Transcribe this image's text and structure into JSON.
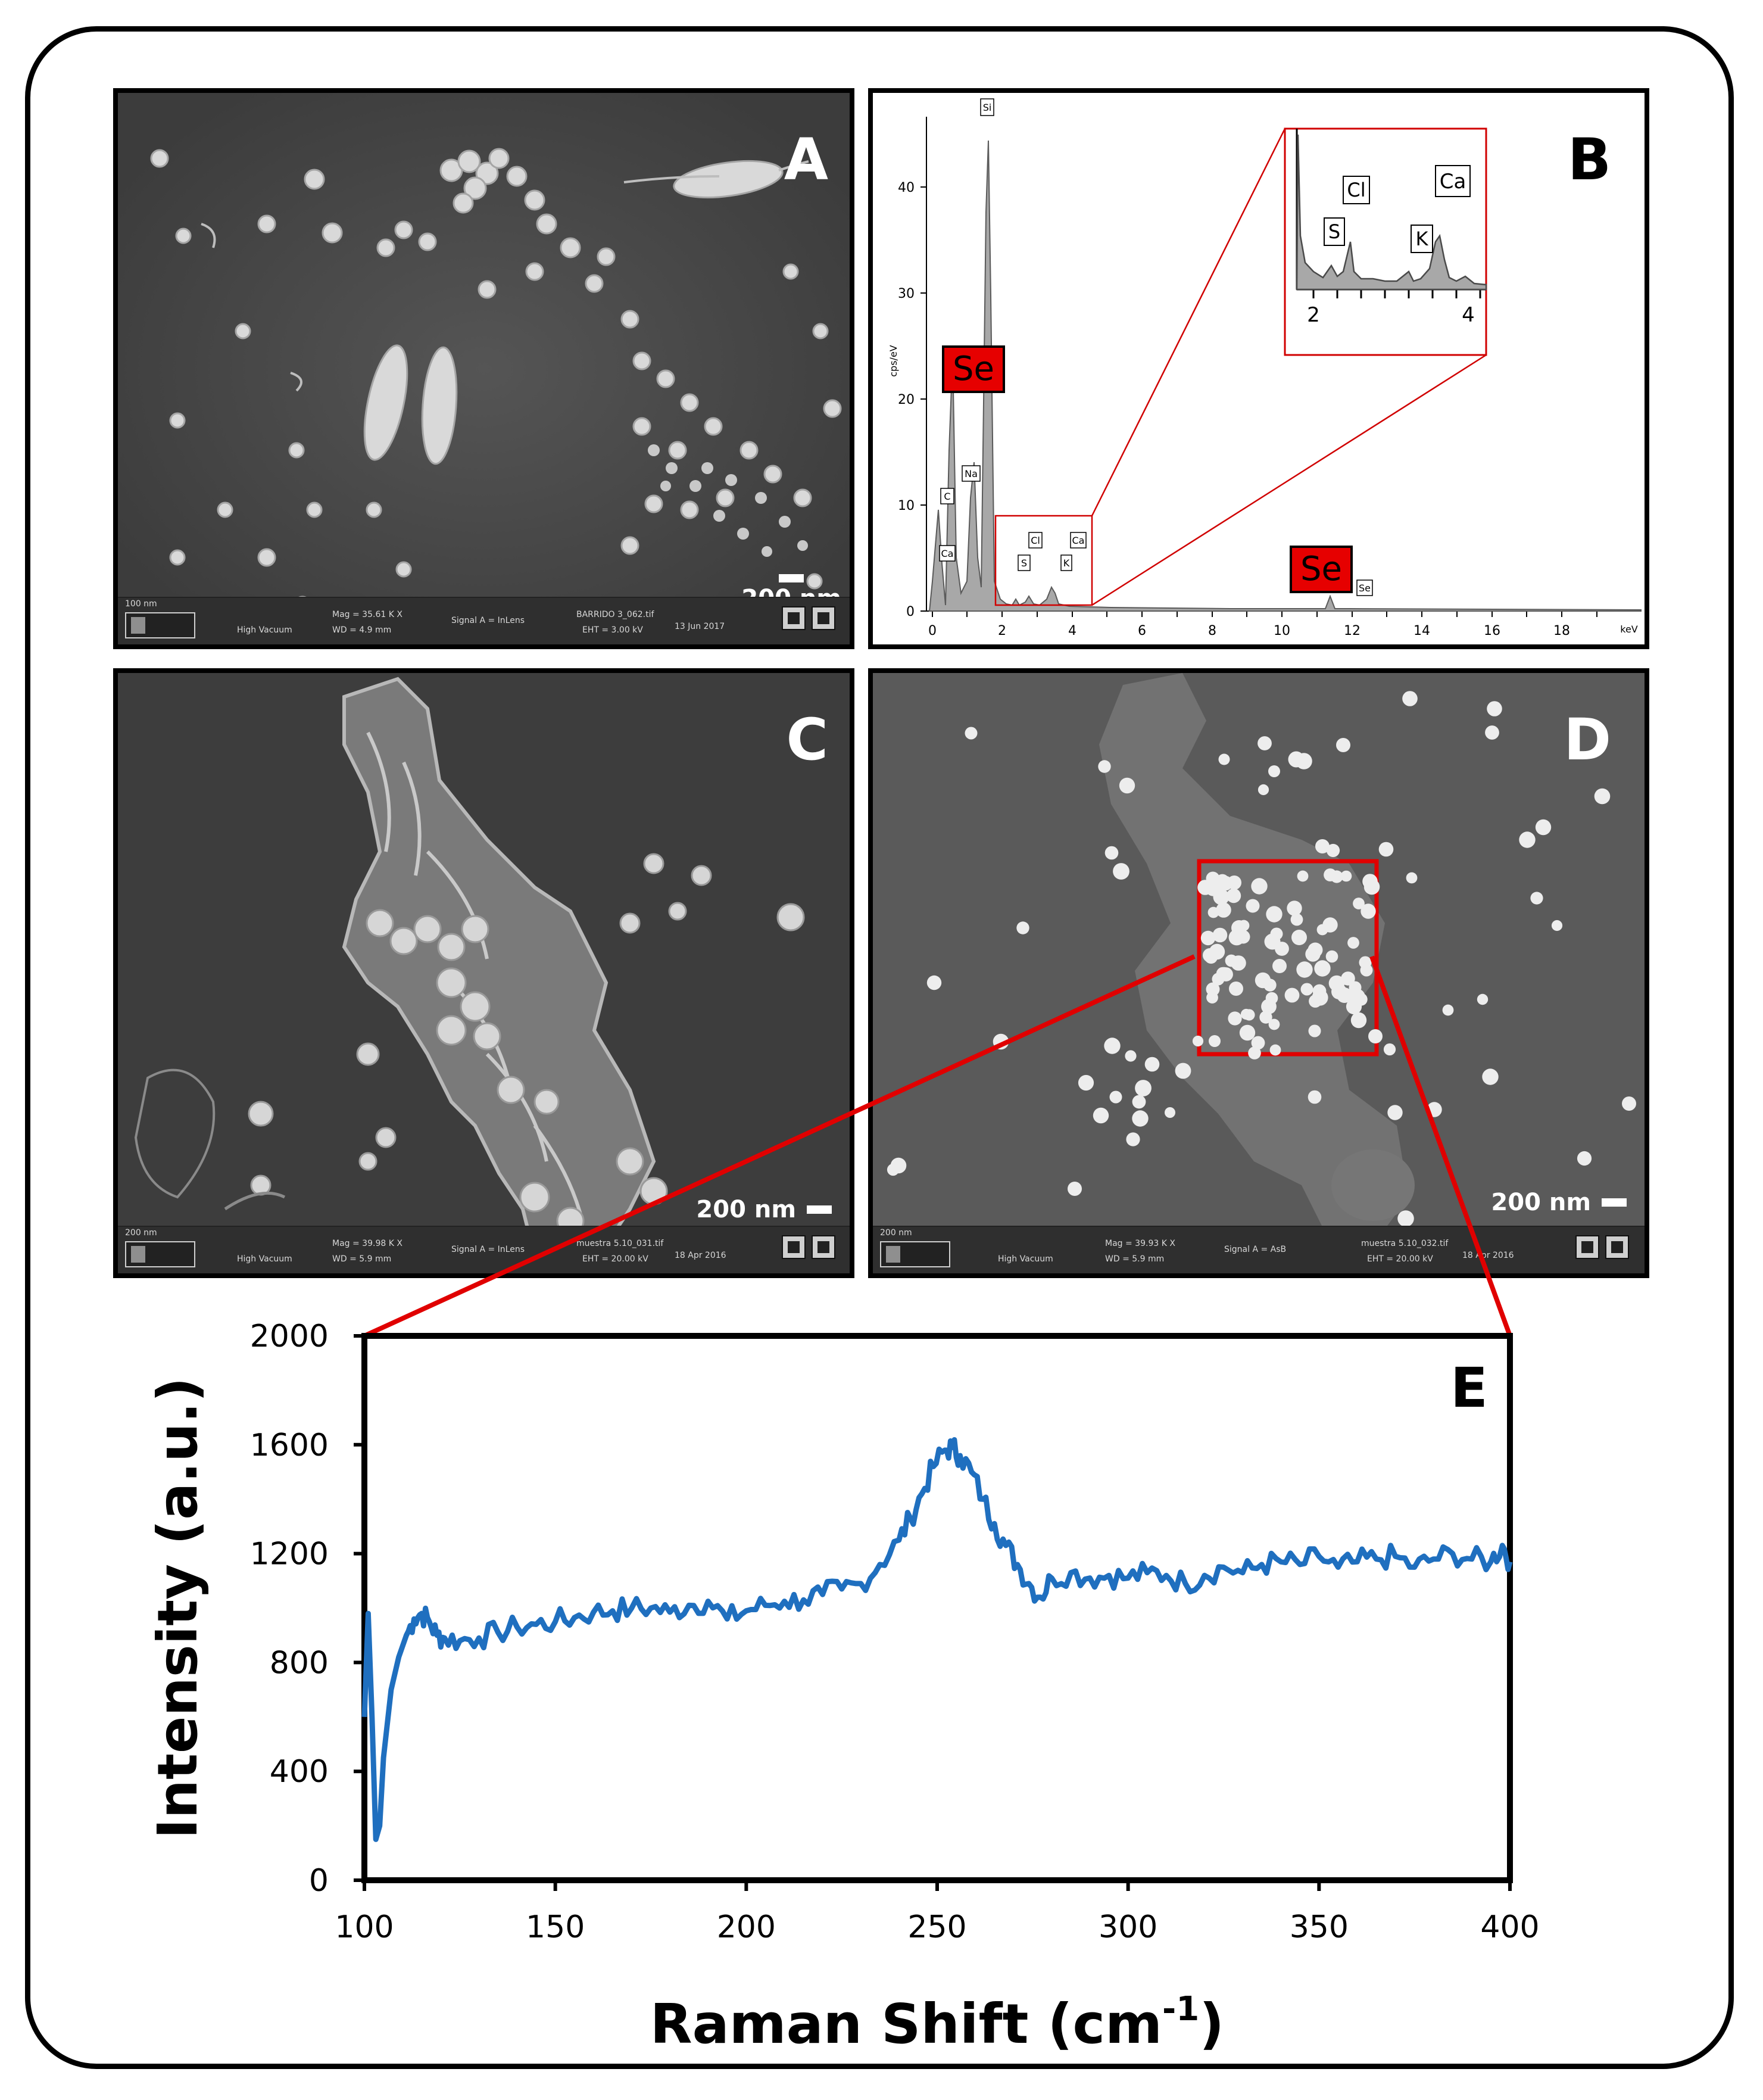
{
  "panels": {
    "a": {
      "label": "A",
      "scalebar": "200 nm",
      "footer": {
        "scale_small": "100 nm",
        "vacuum": "High Vacuum",
        "mag": "Mag = 35.61 K X",
        "wd": "WD = 4.9 mm",
        "signal": "Signal A = InLens",
        "file": "BARRIDO 3_062.tif",
        "eht": "EHT = 3.00 kV",
        "date": "13 Jun 2017"
      }
    },
    "b": {
      "label": "B",
      "y_axis_label": "cps/eV",
      "x_unit": "keV",
      "x_ticks": [
        "0",
        "2",
        "4",
        "6",
        "8",
        "10",
        "12",
        "14",
        "16",
        "18"
      ],
      "y_ticks": [
        "0",
        "10",
        "20",
        "30",
        "40"
      ],
      "peaks_small": [
        "Si",
        "Na",
        "C",
        "Ca",
        "S",
        "Cl",
        "K",
        "Ca",
        "Se"
      ],
      "se_labels": [
        "Se",
        "Se"
      ],
      "inset": {
        "peaks": [
          "S",
          "Cl",
          "K",
          "Ca"
        ],
        "x_ticks": [
          "2",
          "4"
        ]
      }
    },
    "c": {
      "label": "C",
      "scalebar": "200 nm",
      "footer": {
        "scale_small": "200 nm",
        "vacuum": "High Vacuum",
        "mag": "Mag = 39.98 K X",
        "wd": "WD = 5.9 mm",
        "signal": "Signal A = InLens",
        "file": "muestra 5.10_031.tif",
        "eht": "EHT = 20.00 kV",
        "date": "18 Apr 2016"
      }
    },
    "d": {
      "label": "D",
      "scalebar": "200 nm",
      "footer": {
        "scale_small": "200 nm",
        "vacuum": "High Vacuum",
        "mag": "Mag = 39.93 K X",
        "wd": "WD = 5.9 mm",
        "signal": "Signal A = AsB",
        "file": "muestra 5.10_032.tif",
        "eht": "EHT = 20.00 kV",
        "date": "18 Apr 2016"
      }
    },
    "e": {
      "label": "E"
    }
  },
  "colors": {
    "raman_line": "#1f6fbf",
    "se_box": "#e60000",
    "zoom_line": "#e00000",
    "eds_fill": "#a8a8a8"
  },
  "chart_data": {
    "type": "line",
    "title": "",
    "xlabel": "Raman Shift (cm",
    "xlabel_sup": "-1",
    "xlabel_end": ")",
    "ylabel": "Intensity (a.u.)",
    "xlim": [
      100,
      400
    ],
    "ylim": [
      0,
      2000
    ],
    "x_ticks": [
      100,
      150,
      200,
      250,
      300,
      350,
      400
    ],
    "y_ticks": [
      0,
      400,
      800,
      1200,
      1600,
      2000
    ],
    "grid": false,
    "series": [
      {
        "x": [
          100,
          101,
          102,
          103,
          104,
          105,
          107,
          109,
          111,
          113,
          115,
          117,
          119,
          121,
          125,
          130,
          135,
          140,
          145,
          150,
          155,
          160,
          165,
          170,
          175,
          180,
          185,
          190,
          195,
          200,
          205,
          210,
          215,
          220,
          225,
          230,
          235,
          240,
          243,
          246,
          249,
          252,
          254,
          256,
          259,
          262,
          265,
          268,
          271,
          274,
          277,
          280,
          285,
          290,
          295,
          300,
          305,
          310,
          315,
          320,
          325,
          330,
          335,
          340,
          345,
          350,
          355,
          360,
          365,
          370,
          375,
          380,
          385,
          390,
          395,
          398,
          400
        ],
        "y": [
          600,
          980,
          600,
          150,
          200,
          450,
          700,
          820,
          900,
          960,
          980,
          950,
          900,
          890,
          880,
          890,
          910,
          930,
          940,
          950,
          965,
          985,
          990,
          1000,
          1000,
          985,
          1010,
          1025,
          960,
          990,
          1010,
          1025,
          1030,
          1050,
          1070,
          1090,
          1160,
          1250,
          1330,
          1420,
          1520,
          1580,
          1590,
          1560,
          1500,
          1400,
          1310,
          1230,
          1160,
          1090,
          1040,
          1110,
          1130,
          1110,
          1120,
          1110,
          1130,
          1120,
          1090,
          1120,
          1150,
          1130,
          1160,
          1170,
          1160,
          1190,
          1150,
          1170,
          1180,
          1190,
          1150,
          1180,
          1200,
          1180,
          1170,
          1230,
          1170
        ]
      }
    ]
  }
}
